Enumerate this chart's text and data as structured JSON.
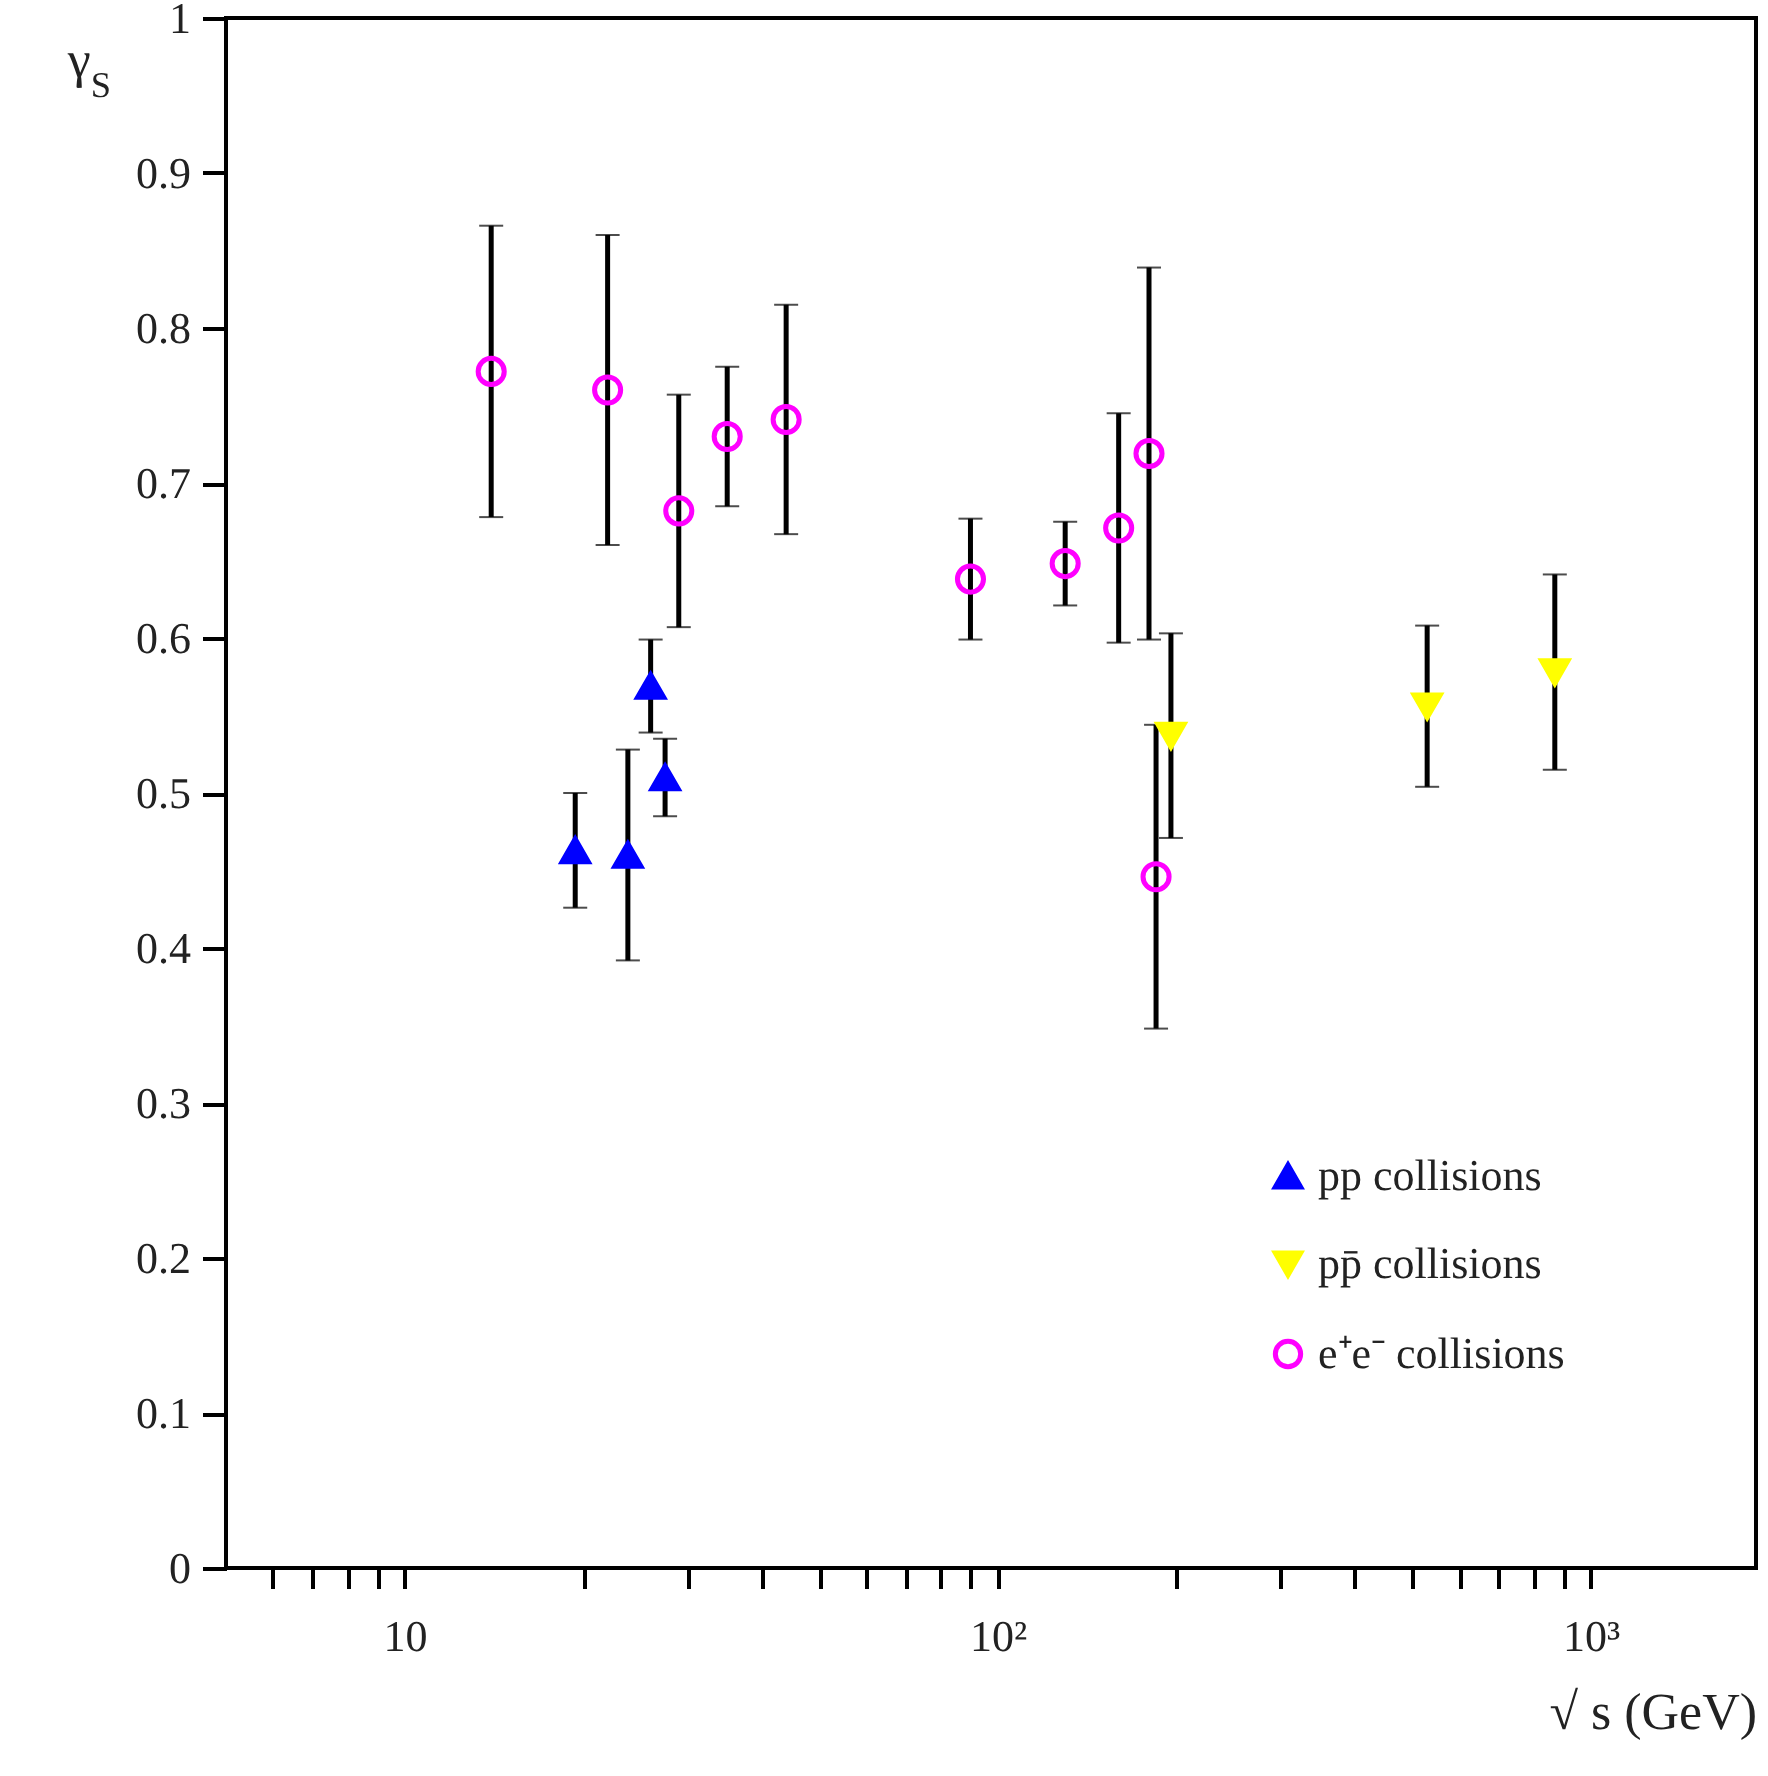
{
  "chart_data": {
    "type": "scatter",
    "ylabel": "γ$_{S}$",
    "xlabel": "√ s (GeV)",
    "log": "x",
    "xlim": [
      5,
      1900
    ],
    "xticks": [
      {
        "value": 6,
        "label": null
      },
      {
        "value": 7,
        "label": null
      },
      {
        "value": 8,
        "label": null
      },
      {
        "value": 9,
        "label": null
      },
      10,
      {
        "value": 20,
        "label": null
      },
      {
        "value": 30,
        "label": null
      },
      {
        "value": 40,
        "label": null
      },
      {
        "value": 50,
        "label": null
      },
      {
        "value": 60,
        "label": null
      },
      {
        "value": 70,
        "label": null
      },
      {
        "value": 80,
        "label": null
      },
      {
        "value": 90,
        "label": null
      },
      {
        "value": 100,
        "label": "10²"
      },
      {
        "value": 200,
        "label": null
      },
      {
        "value": 300,
        "label": null
      },
      {
        "value": 400,
        "label": null
      },
      {
        "value": 500,
        "label": null
      },
      {
        "value": 600,
        "label": null
      },
      {
        "value": 700,
        "label": null
      },
      {
        "value": 800,
        "label": null
      },
      {
        "value": 900,
        "label": null
      },
      {
        "value": 1000,
        "label": "10³"
      }
    ],
    "ylim": [
      0,
      1
    ],
    "yticks": [
      0,
      0.1,
      0.2,
      0.3,
      0.4,
      0.5,
      0.6,
      0.7,
      0.8,
      0.9,
      1
    ],
    "grid": false,
    "legend": "bottom right",
    "series": [
      {
        "name": "pp collisions",
        "color": "#0000ff",
        "marker": "triangle",
        "x": [
          19.4,
          23.8,
          26,
          27.5
        ],
        "values": [
          0.463,
          0.46,
          0.569,
          0.51
        ],
        "errors": [
          0.037,
          0.068,
          0.03,
          0.025
        ]
      },
      {
        "name": "pp̄ collisions",
        "color": "#ffff00",
        "marker": "triangle-down",
        "x": [
          196,
          530,
          870
        ],
        "values": [
          0.537,
          0.556,
          0.578
        ],
        "errors": [
          0.066,
          0.052,
          0.063
        ]
      },
      {
        "name": "e⁺e⁻ collisions",
        "color": "#ff00ff",
        "marker": "circle",
        "x": [
          14,
          22,
          29,
          35,
          44,
          90,
          130,
          160,
          180,
          185
        ],
        "values": [
          0.772,
          0.76,
          0.682,
          0.73,
          0.741,
          0.638,
          0.648,
          0.671,
          0.719,
          0.446
        ],
        "errors": [
          0.094,
          0.1,
          0.075,
          0.045,
          0.074,
          0.039,
          0.027,
          0.074,
          0.12,
          0.098
        ]
      }
    ]
  }
}
